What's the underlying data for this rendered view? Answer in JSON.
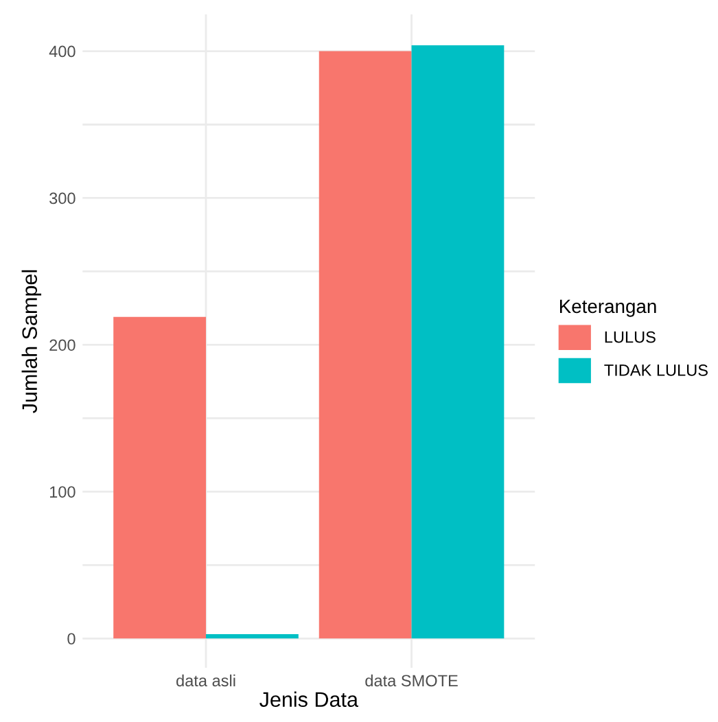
{
  "chart_data": {
    "type": "bar",
    "xlabel": "Jenis Data",
    "ylabel": "Jumlah Sampel",
    "legend_title": "Keterangan",
    "categories": [
      "data asli",
      "data SMOTE"
    ],
    "series": [
      {
        "name": "LULUS",
        "color": "#f8766d",
        "values": [
          219,
          400
        ]
      },
      {
        "name": "TIDAK LULUS",
        "color": "#00bfc4",
        "values": [
          3,
          404
        ]
      }
    ],
    "ylim": [
      -20,
      425
    ],
    "yticks": [
      0,
      {
        "value": 50,
        "label": null
      },
      100,
      {
        "value": 150,
        "label": null
      },
      200,
      {
        "value": 250,
        "label": null
      },
      300,
      {
        "value": 350,
        "label": null
      },
      400
    ],
    "grid": true,
    "legend": "right"
  }
}
